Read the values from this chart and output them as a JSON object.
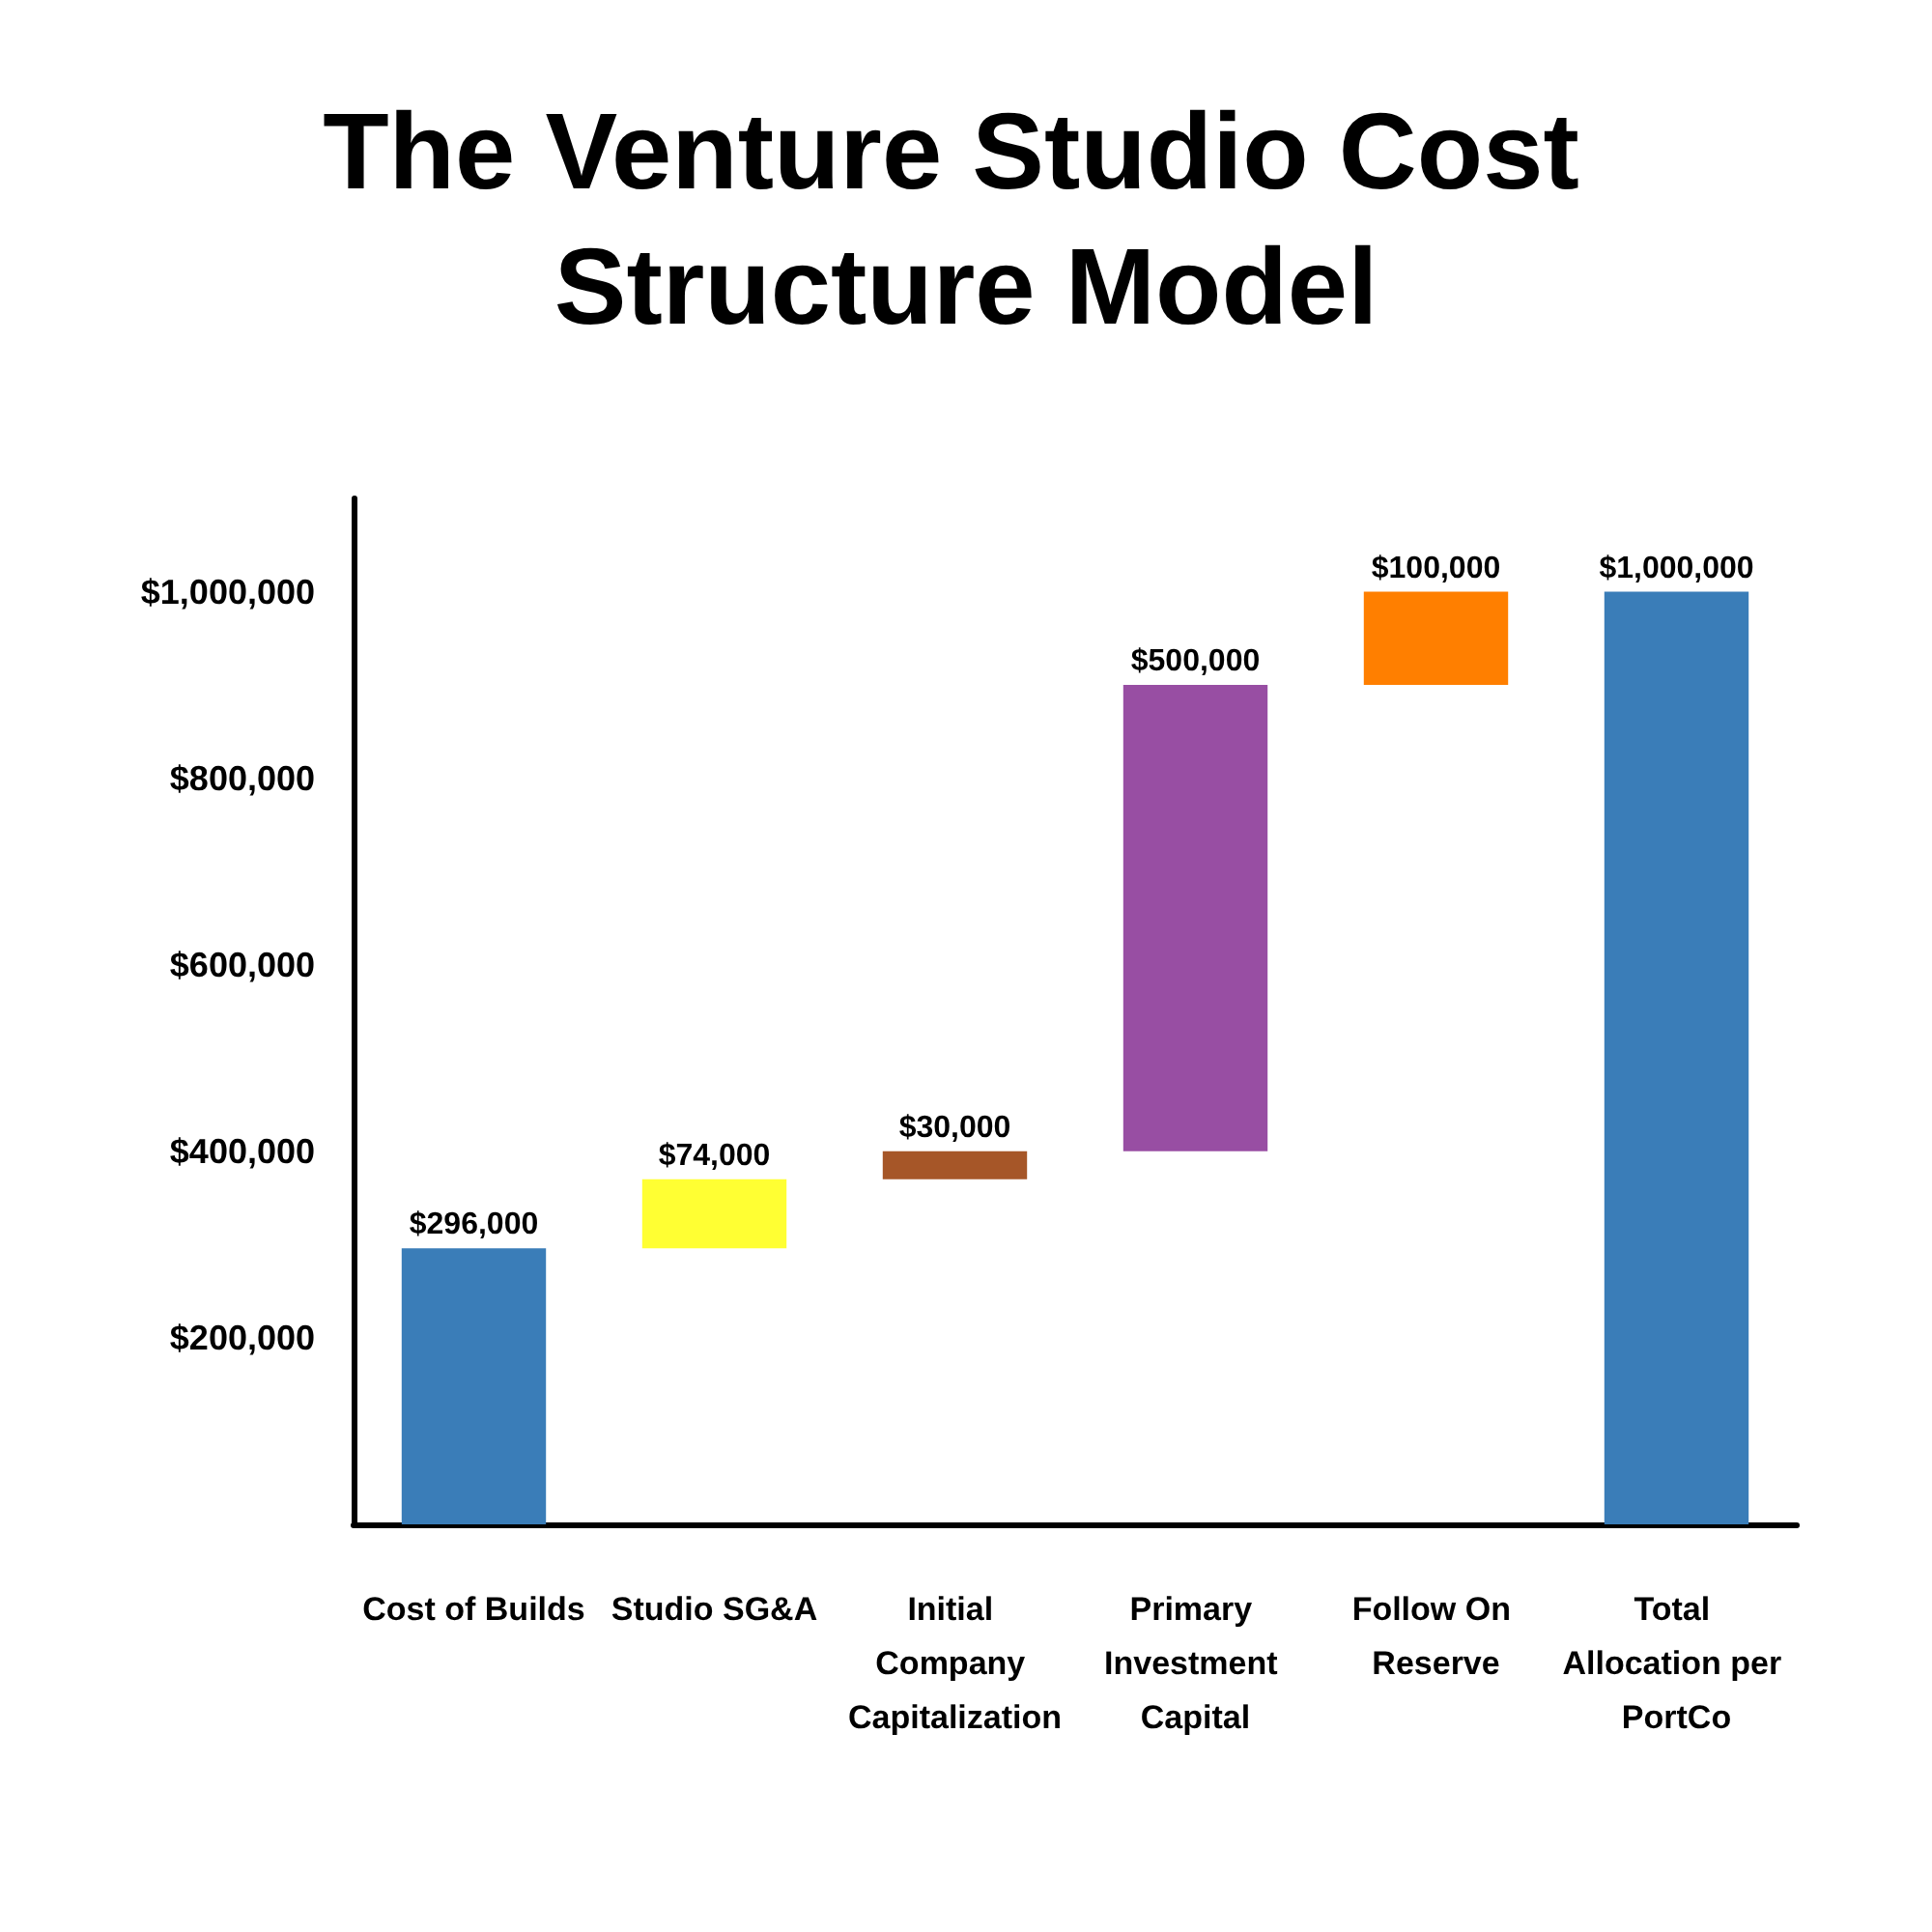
{
  "chart_data": {
    "type": "bar",
    "title": "The Venture Studio Cost Structure Model",
    "categories": [
      "Cost of Builds",
      "Studio SG&A",
      "Initial Company Capitalization",
      "Primary Investment Capital",
      "Follow On Reserve",
      "Total Allocation per PortCo"
    ],
    "values": [
      296000,
      74000,
      30000,
      500000,
      100000,
      1000000
    ],
    "base": [
      0,
      296000,
      370000,
      400000,
      900000,
      0
    ],
    "colors": [
      "#3a7db8",
      "#ffff33",
      "#a65628",
      "#984ea3",
      "#ff7f00",
      "#3a7db8"
    ],
    "value_labels": [
      "$296,000",
      "$74,000",
      "$30,000",
      "$500,000",
      "$100,000",
      "$1,000,000"
    ],
    "ylim": [
      0,
      1100000
    ],
    "yticks": [
      {
        "value": 200000,
        "label": "$200,000"
      },
      {
        "value": 400000,
        "label": "$400,000"
      },
      {
        "value": 600000,
        "label": "$600,000"
      },
      {
        "value": 800000,
        "label": "$800,000"
      },
      {
        "value": 1000000,
        "label": "$1,000,000"
      }
    ],
    "grid": false
  }
}
